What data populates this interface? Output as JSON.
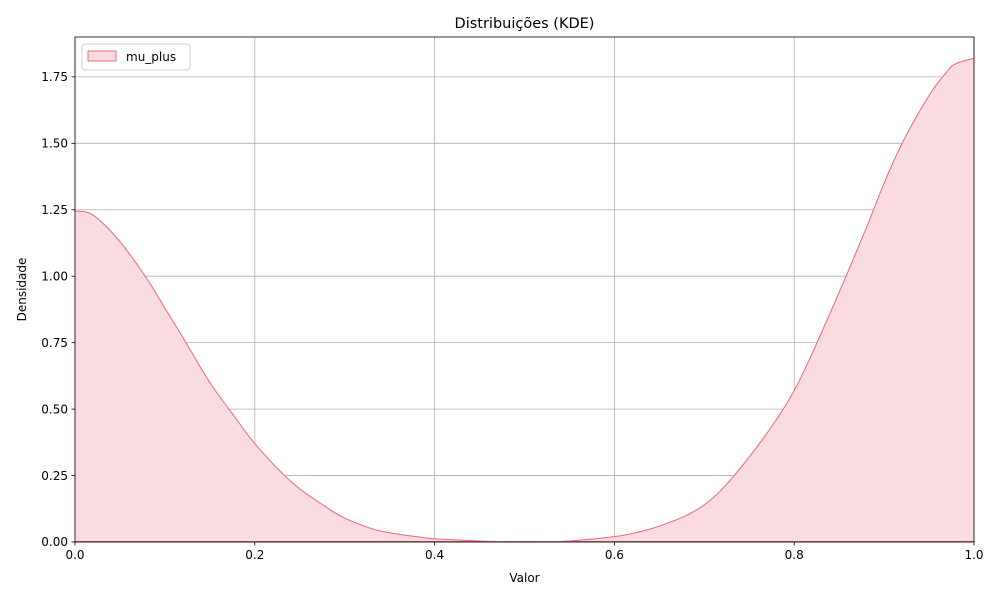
{
  "chart_data": {
    "type": "area",
    "title": "Distribuições (KDE)",
    "xlabel": "Valor",
    "ylabel": "Densidade",
    "xlim": [
      0.0,
      1.0
    ],
    "ylim": [
      0.0,
      1.9
    ],
    "xticks": [
      0.0,
      0.2,
      0.4,
      0.6,
      0.8,
      1.0
    ],
    "xtick_labels": [
      "0.0",
      "0.2",
      "0.4",
      "0.6",
      "0.8",
      "1.0"
    ],
    "yticks": [
      0.0,
      0.25,
      0.5,
      0.75,
      1.0,
      1.25,
      1.5,
      1.75
    ],
    "ytick_labels": [
      "0.00",
      "0.25",
      "0.50",
      "0.75",
      "1.00",
      "1.25",
      "1.50",
      "1.75"
    ],
    "grid": true,
    "legend_position": "top-left",
    "series": [
      {
        "name": "mu_plus",
        "color": "#e8687e",
        "fill_color": "#fadbe0",
        "x": [
          0.0,
          0.02,
          0.05,
          0.08,
          0.1,
          0.12,
          0.15,
          0.18,
          0.2,
          0.23,
          0.25,
          0.28,
          0.3,
          0.33,
          0.35,
          0.38,
          0.4,
          0.45,
          0.5,
          0.55,
          0.6,
          0.63,
          0.65,
          0.68,
          0.7,
          0.72,
          0.75,
          0.78,
          0.8,
          0.82,
          0.85,
          0.88,
          0.9,
          0.92,
          0.95,
          0.97,
          0.98,
          1.0
        ],
        "y": [
          1.245,
          1.23,
          1.13,
          0.99,
          0.88,
          0.77,
          0.6,
          0.46,
          0.37,
          0.26,
          0.2,
          0.13,
          0.09,
          0.05,
          0.035,
          0.02,
          0.012,
          0.004,
          0.001,
          0.004,
          0.02,
          0.04,
          0.06,
          0.1,
          0.14,
          0.2,
          0.32,
          0.46,
          0.57,
          0.71,
          0.94,
          1.18,
          1.35,
          1.5,
          1.68,
          1.77,
          1.8,
          1.82
        ]
      }
    ]
  }
}
